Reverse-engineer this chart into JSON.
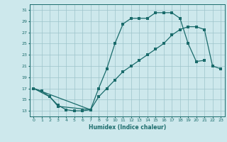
{
  "xlabel": "Humidex (Indice chaleur)",
  "bg_color": "#cde8ec",
  "grid_color": "#9dc4ca",
  "line_color": "#1a6b6b",
  "xlim": [
    -0.5,
    23.5
  ],
  "ylim": [
    12,
    32
  ],
  "xticks": [
    0,
    1,
    2,
    3,
    4,
    5,
    6,
    7,
    8,
    9,
    10,
    11,
    12,
    13,
    14,
    15,
    16,
    17,
    18,
    19,
    20,
    21,
    22,
    23
  ],
  "yticks": [
    13,
    15,
    17,
    19,
    21,
    23,
    25,
    27,
    29,
    31
  ],
  "line1": {
    "x": [
      0,
      1,
      2,
      3,
      4,
      5,
      6,
      7
    ],
    "y": [
      17,
      16.5,
      15.5,
      14.0,
      13.2,
      13.0,
      13.0,
      13.2
    ]
  },
  "line2": {
    "x": [
      0,
      2,
      3,
      7,
      8,
      9,
      10,
      11,
      12,
      13,
      14,
      15,
      16,
      17,
      18,
      19,
      20,
      21
    ],
    "y": [
      17.0,
      15.5,
      13.8,
      13.2,
      17.0,
      20.5,
      25.0,
      28.5,
      29.5,
      29.5,
      29.5,
      30.5,
      30.5,
      30.5,
      29.5,
      25.0,
      21.8,
      22.0
    ]
  },
  "line3": {
    "x": [
      0,
      7,
      8,
      9,
      10,
      11,
      12,
      13,
      14,
      15,
      16,
      17,
      18,
      19,
      20,
      21,
      22,
      23
    ],
    "y": [
      17.0,
      13.2,
      15.5,
      17.0,
      18.5,
      20.0,
      21.0,
      22.0,
      23.0,
      24.0,
      25.0,
      26.5,
      27.5,
      28.0,
      28.0,
      27.5,
      21.0,
      20.5
    ]
  }
}
